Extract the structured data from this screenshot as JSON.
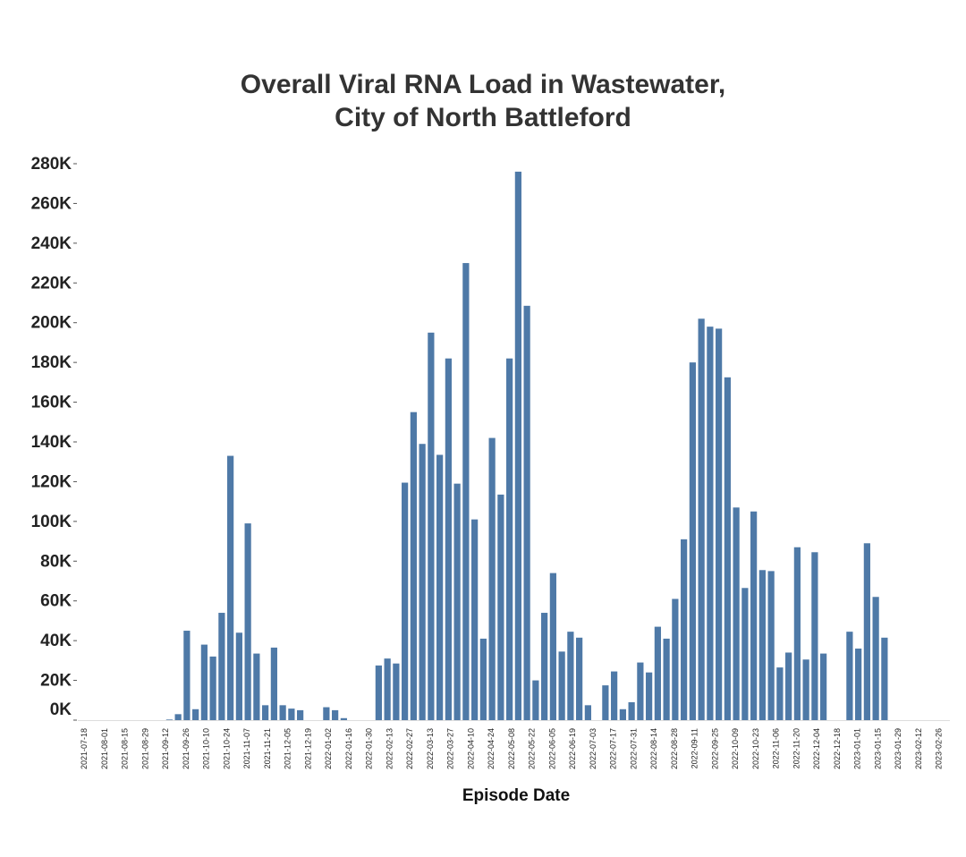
{
  "chart_data": {
    "type": "bar",
    "title_line1": "Overall Viral RNA Load in Wastewater,",
    "title_line2": "City of North Battleford",
    "xlabel": "Episode Date",
    "ylabel": "",
    "ylim": [
      0,
      290000
    ],
    "y_ticks": [
      {
        "value": 0,
        "label": "0K"
      },
      {
        "value": 20000,
        "label": "20K"
      },
      {
        "value": 40000,
        "label": "40K"
      },
      {
        "value": 60000,
        "label": "60K"
      },
      {
        "value": 80000,
        "label": "80K"
      },
      {
        "value": 100000,
        "label": "100K"
      },
      {
        "value": 120000,
        "label": "120K"
      },
      {
        "value": 140000,
        "label": "140K"
      },
      {
        "value": 160000,
        "label": "160K"
      },
      {
        "value": 180000,
        "label": "180K"
      },
      {
        "value": 200000,
        "label": "200K"
      },
      {
        "value": 220000,
        "label": "220K"
      },
      {
        "value": 240000,
        "label": "240K"
      },
      {
        "value": 260000,
        "label": "260K"
      },
      {
        "value": 280000,
        "label": "280K"
      }
    ],
    "x_tick_labels": [
      "2021-07-18",
      "2021-08-01",
      "2021-08-15",
      "2021-08-29",
      "2021-09-12",
      "2021-09-26",
      "2021-10-10",
      "2021-10-24",
      "2021-11-07",
      "2021-11-21",
      "2021-12-05",
      "2021-12-19",
      "2022-01-02",
      "2022-01-16",
      "2022-01-30",
      "2022-02-13",
      "2022-02-27",
      "2022-03-13",
      "2022-03-27",
      "2022-04-10",
      "2022-04-24",
      "2022-05-08",
      "2022-05-22",
      "2022-06-05",
      "2022-06-19",
      "2022-07-03",
      "2022-07-17",
      "2022-07-31",
      "2022-08-14",
      "2022-08-28",
      "2022-09-11",
      "2022-09-25",
      "2022-10-09",
      "2022-10-23",
      "2022-11-06",
      "2022-11-20",
      "2022-12-04",
      "2022-12-18",
      "2023-01-01",
      "2023-01-15",
      "2023-01-29",
      "2023-02-12",
      "2023-02-26"
    ],
    "bar_color": "#4e79a7",
    "grid": false,
    "values": [
      0,
      0,
      0,
      0,
      0,
      0,
      0,
      0,
      0,
      0,
      300,
      3000,
      45000,
      5500,
      38000,
      32000,
      54000,
      133000,
      44000,
      99000,
      33500,
      7500,
      36500,
      7500,
      5800,
      5000,
      0,
      0,
      6500,
      5000,
      1000,
      0,
      0,
      0,
      27500,
      31000,
      28500,
      119500,
      155000,
      139000,
      195000,
      133500,
      182000,
      119000,
      230000,
      101000,
      41000,
      142000,
      113500,
      182000,
      276000,
      208500,
      20000,
      54000,
      74000,
      34500,
      44500,
      41500,
      7500,
      0,
      17500,
      24500,
      5500,
      9000,
      29000,
      24000,
      47000,
      41000,
      61000,
      91000,
      180000,
      202000,
      198000,
      197000,
      172500,
      107000,
      66500,
      105000,
      75500,
      75000,
      26500,
      34000,
      87000,
      30500,
      84500,
      33500,
      0,
      0,
      44500,
      36000,
      89000,
      62000,
      41500,
      0,
      0,
      0,
      0,
      0,
      0,
      0
    ]
  }
}
